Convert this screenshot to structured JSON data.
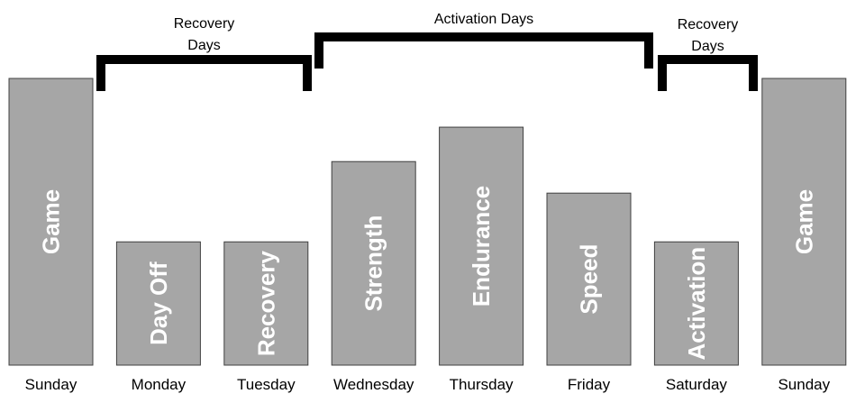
{
  "chart_data": {
    "type": "bar",
    "categories": [
      "Sunday",
      "Monday",
      "Tuesday",
      "Wednesday",
      "Thursday",
      "Friday",
      "Saturday",
      "Sunday"
    ],
    "bar_labels": [
      "Game",
      "Day Off",
      "Recovery",
      "Strength",
      "Endurance",
      "Speed",
      "Activation",
      "Game"
    ],
    "values": [
      100,
      43,
      43,
      71,
      83,
      60,
      43,
      100
    ],
    "groups": [
      {
        "label_lines": [
          "Recovery",
          "Days"
        ],
        "from": 1,
        "to": 2
      },
      {
        "label_lines": [
          "Activation Days"
        ],
        "from": 3,
        "to": 5
      },
      {
        "label_lines": [
          "Recovery",
          "Days"
        ],
        "from": 6,
        "to": 6
      }
    ],
    "bar_color": "#a6a6a6",
    "label_color": "#ffffff"
  }
}
